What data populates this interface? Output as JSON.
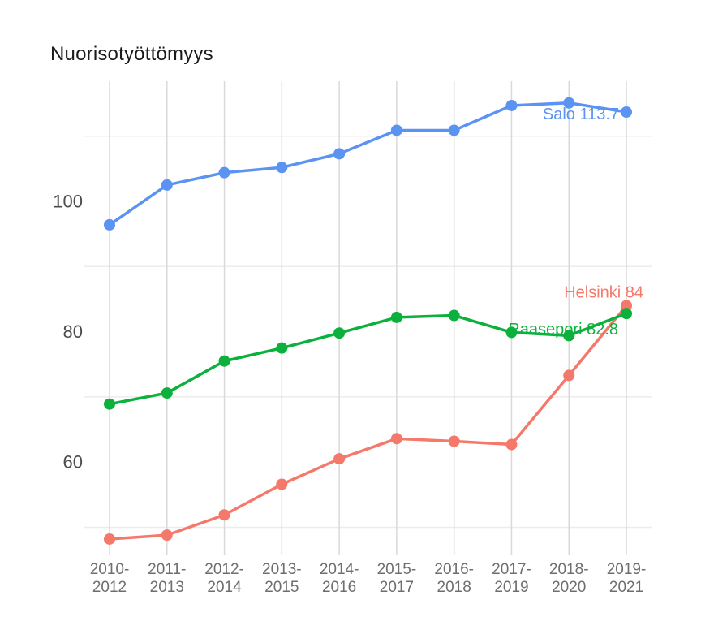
{
  "title": "Nuorisotyöttömyys",
  "chart_data": {
    "type": "line",
    "title": "Nuorisotyöttömyys",
    "categories": [
      "2010-2012",
      "2011-2013",
      "2012-2014",
      "2013-2015",
      "2014-2016",
      "2015-2017",
      "2016-2018",
      "2017-2019",
      "2018-2020",
      "2019-2021"
    ],
    "series": [
      {
        "name": "Helsinki",
        "color": "#f4796b",
        "values": [
          48.2,
          48.8,
          51.9,
          56.6,
          60.5,
          63.6,
          63.2,
          62.7,
          73.3,
          84
        ],
        "end_label": "Helsinki 84"
      },
      {
        "name": "Raasepori",
        "color": "#0bb13c",
        "values": [
          68.9,
          70.6,
          75.5,
          77.5,
          79.8,
          82.2,
          82.5,
          79.9,
          79.4,
          82.8
        ],
        "end_label": "Raasepori 82.8"
      },
      {
        "name": "Salo",
        "color": "#5b93f2",
        "values": [
          96.4,
          102.5,
          104.4,
          105.2,
          107.3,
          110.9,
          110.9,
          114.7,
          115.1,
          113.7
        ],
        "end_label": "Salo 113.7"
      }
    ],
    "y_axis": {
      "tick_labels": [
        100,
        80,
        60
      ],
      "gridline_values": [
        110,
        90,
        70,
        50
      ],
      "ylim": [
        44,
        120
      ]
    },
    "x_axis": {
      "tick_label_style": "two-line, split at hyphen"
    },
    "grid": true,
    "legend": "inline end-of-series labels",
    "colors": {
      "vertical_gridline": "#d9d9d9",
      "horizontal_gridline": "#ececec",
      "y_tick_text": "#4d4d4d",
      "x_tick_text": "#6e6e6e",
      "title_text": "#1a1a1a"
    }
  }
}
